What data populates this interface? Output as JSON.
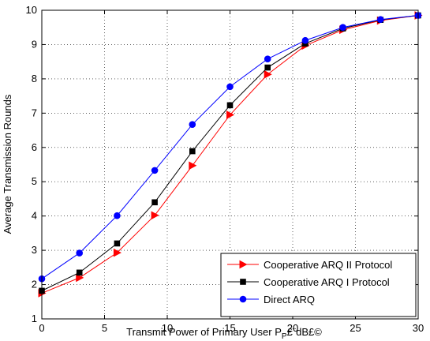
{
  "chart_data": {
    "type": "line",
    "title": "",
    "xlabel": "Transmit Power of Primary User P",
    "xlabel_subscript": "P",
    "xlabel_suffix": "£¨dB£©",
    "ylabel": "Average Transmission Rounds",
    "xlim": [
      0,
      30
    ],
    "ylim": [
      1,
      10
    ],
    "xticks": [
      0,
      5,
      10,
      15,
      20,
      25,
      30
    ],
    "yticks": [
      1,
      2,
      3,
      4,
      5,
      6,
      7,
      8,
      9,
      10
    ],
    "grid": true,
    "legend_position": "bottom-right",
    "series": [
      {
        "name": "Cooperative ARQ II Protocol",
        "color": "#ff0000",
        "marker": "triangle-right",
        "x": [
          0,
          3,
          6,
          9,
          12,
          15,
          18,
          21,
          24,
          27,
          30
        ],
        "y": [
          1.75,
          2.2,
          2.93,
          4.02,
          5.47,
          6.95,
          8.13,
          8.97,
          9.43,
          9.7,
          9.85
        ]
      },
      {
        "name": "Cooperative ARQ I Protocol",
        "color": "#000000",
        "marker": "square",
        "x": [
          0,
          3,
          6,
          9,
          12,
          15,
          18,
          21,
          24,
          27,
          30
        ],
        "y": [
          1.82,
          2.35,
          3.2,
          4.4,
          5.89,
          7.23,
          8.33,
          9.03,
          9.47,
          9.72,
          9.85
        ]
      },
      {
        "name": "Direct ARQ",
        "color": "#0000ff",
        "marker": "circle",
        "x": [
          0,
          3,
          6,
          9,
          12,
          15,
          18,
          21,
          24,
          27,
          30
        ],
        "y": [
          2.17,
          2.92,
          4.01,
          5.33,
          6.67,
          7.77,
          8.58,
          9.12,
          9.5,
          9.73,
          9.85
        ]
      }
    ]
  }
}
